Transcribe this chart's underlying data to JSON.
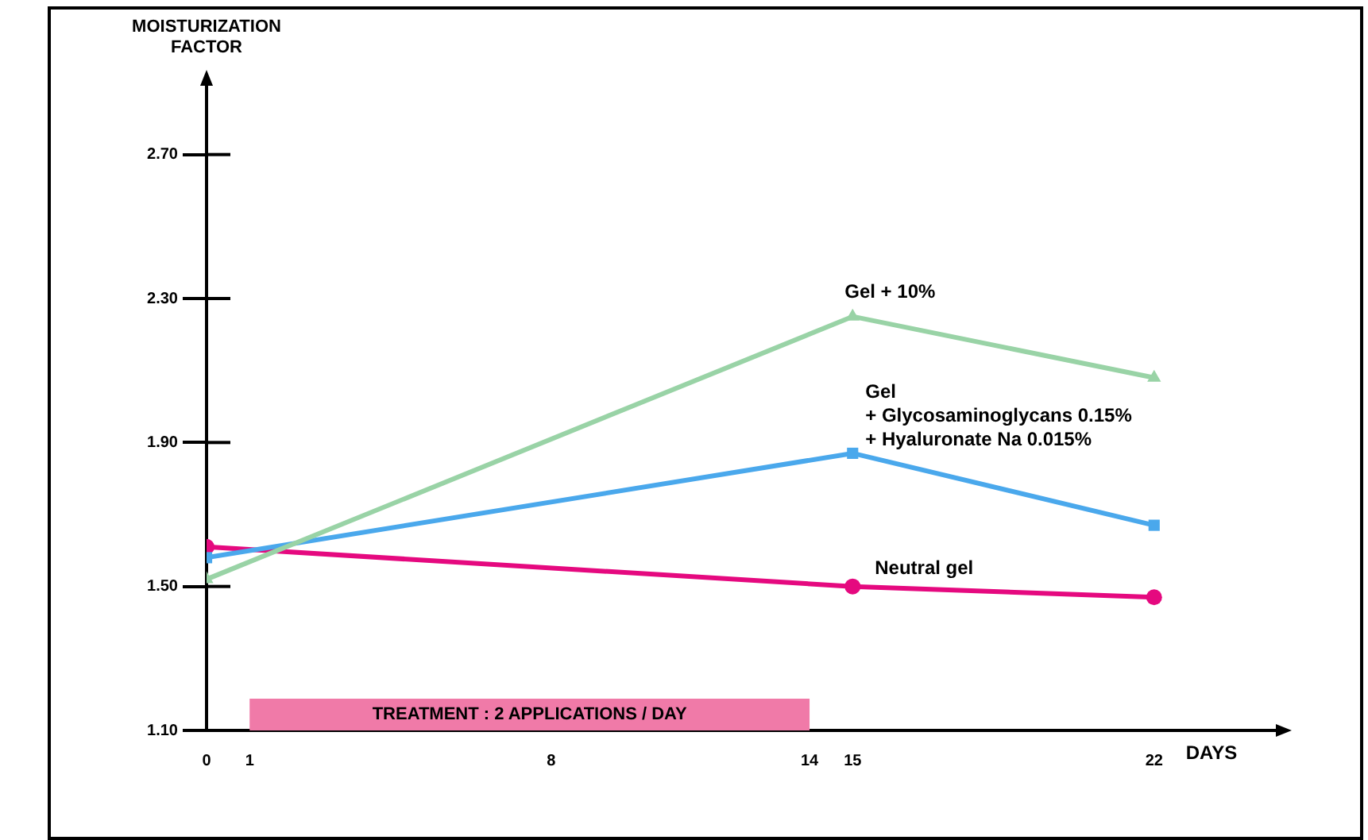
{
  "chart_data": {
    "type": "line",
    "xlabel": "DAYS",
    "ylabel": "MOISTURIZATION FACTOR",
    "xlim": [
      0,
      24.9
    ],
    "xticks": [
      0,
      1,
      8,
      14,
      15,
      22
    ],
    "ylim": [
      1.1,
      2.9
    ],
    "yticks": [
      {
        "value": 1.1,
        "label": "1.10"
      },
      {
        "value": 1.5,
        "label": "1.50"
      },
      {
        "value": 1.9,
        "label": "1.90"
      },
      {
        "value": 2.3,
        "label": "2.30"
      },
      {
        "value": 2.7,
        "label": "2.70"
      }
    ],
    "x": [
      0,
      15,
      22
    ],
    "series": [
      {
        "name": "Gel + 10%",
        "color": "#99d3a6",
        "marker": "triangle",
        "values": [
          1.52,
          2.25,
          2.08
        ]
      },
      {
        "name": "Gel\n+ Glycosaminoglycans 0.15%\n+ Hyaluronate Na 0.015%",
        "color": "#4aa8ec",
        "marker": "square",
        "values": [
          1.58,
          1.87,
          1.67
        ]
      },
      {
        "name": "Neutral gel",
        "color": "#e5097f",
        "marker": "circle",
        "values": [
          1.61,
          1.5,
          1.47
        ]
      }
    ],
    "bands": [
      {
        "axis": "x",
        "from": 1,
        "to": 14,
        "label": "TREATMENT : 2 APPLICATIONS / DAY",
        "color": "#f07aa8"
      }
    ],
    "legend": false
  }
}
